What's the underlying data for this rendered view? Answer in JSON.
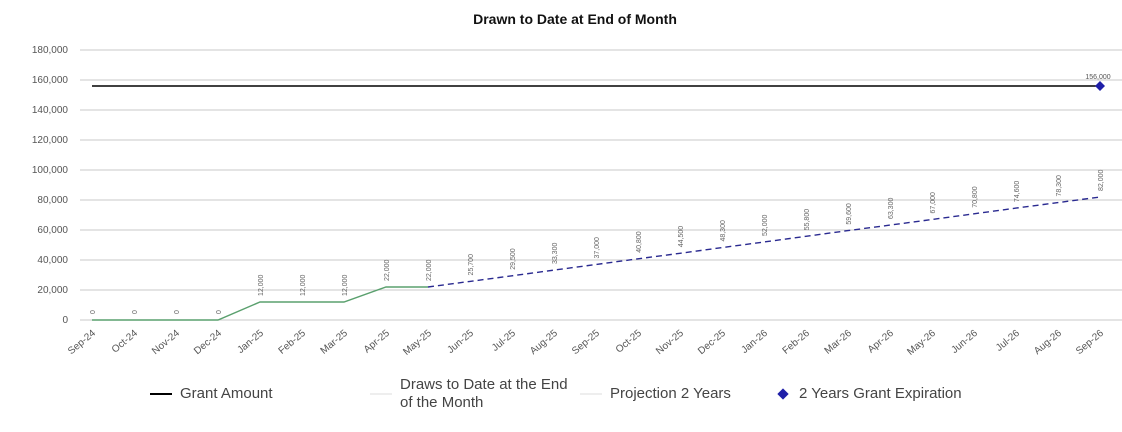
{
  "chart_data": {
    "type": "line",
    "title": "Drawn to Date at End of Month",
    "xlabel": "",
    "ylabel": "",
    "ylim": [
      0,
      180000
    ],
    "yticks": [
      "0",
      "20,000",
      "40,000",
      "60,000",
      "80,000",
      "100,000",
      "120,000",
      "140,000",
      "160,000",
      "180,000"
    ],
    "grid": true,
    "legend_position": "bottom",
    "categories": [
      "Sep-24",
      "Oct-24",
      "Nov-24",
      "Dec-24",
      "Jan-25",
      "Feb-25",
      "Mar-25",
      "Apr-25",
      "May-25",
      "Jun-25",
      "Jul-25",
      "Aug-25",
      "Sep-25",
      "Oct-25",
      "Nov-25",
      "Dec-25",
      "Jan-26",
      "Feb-26",
      "Mar-26",
      "Apr-26",
      "May-26",
      "Jun-26",
      "Jul-26",
      "Aug-26",
      "Sep-26"
    ],
    "series": [
      {
        "name": "Grant Amount",
        "color": "#000000",
        "values": [
          156000,
          156000,
          156000,
          156000,
          156000,
          156000,
          156000,
          156000,
          156000,
          156000,
          156000,
          156000,
          156000,
          156000,
          156000,
          156000,
          156000,
          156000,
          156000,
          156000,
          156000,
          156000,
          156000,
          156000,
          156000
        ]
      },
      {
        "name": "Draws to Date at the End of the Month",
        "color": "#5aa06e",
        "values": [
          0,
          0,
          0,
          0,
          12000,
          12000,
          12000,
          22000,
          22000,
          null,
          null,
          null,
          null,
          null,
          null,
          null,
          null,
          null,
          null,
          null,
          null,
          null,
          null,
          null,
          null
        ],
        "data_labels": [
          "0",
          "0",
          "0",
          "0",
          "12,000",
          "12,000",
          "12,000",
          "22,000",
          "22,000"
        ]
      },
      {
        "name": "Projection 2 Years",
        "color": "#2a2a90",
        "dashed": true,
        "values": [
          null,
          null,
          null,
          null,
          null,
          null,
          null,
          null,
          22000,
          25700,
          29500,
          33300,
          37000,
          40800,
          44500,
          48300,
          52000,
          55800,
          59600,
          63300,
          67000,
          70800,
          74600,
          78300,
          82000
        ],
        "data_labels": [
          "25,700",
          "29,500",
          "33,300",
          "37,000",
          "40,800",
          "44,500",
          "48,300",
          "52,000",
          "55,800",
          "59,600",
          "63,300",
          "67,000",
          "70,800",
          "74,600",
          "78,300",
          "82,000"
        ]
      },
      {
        "name": "2 Years Grant Expiration",
        "color": "#1f1fa8",
        "marker": "diamond",
        "points": [
          {
            "x": "Sep-26",
            "y": 156000
          }
        ],
        "data_labels": [
          "156,000"
        ]
      }
    ]
  },
  "legend": {
    "items": [
      {
        "label": "Grant Amount",
        "color": "#000000",
        "kind": "line"
      },
      {
        "label": "Draws to Date at the End of the Month",
        "color": "#5aa06e",
        "kind": "line"
      },
      {
        "label": "Projection 2 Years",
        "color": "#2a2a90",
        "kind": "line"
      },
      {
        "label": "2 Years Grant Expiration",
        "color": "#1f1fa8",
        "kind": "diamond"
      }
    ]
  }
}
